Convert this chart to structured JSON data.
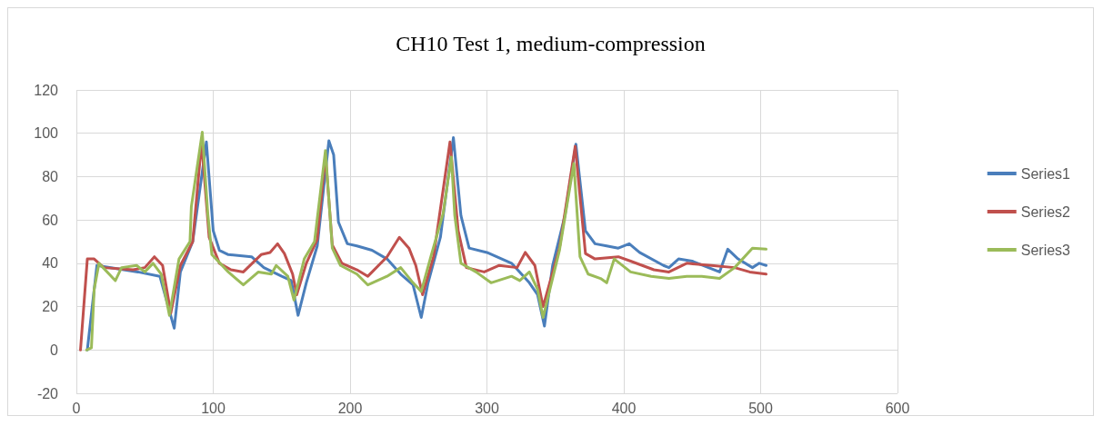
{
  "chart_data": {
    "type": "line",
    "title": "CH10 Test 1, medium-compression",
    "xlim": [
      0,
      600
    ],
    "xticks": [
      0,
      100,
      200,
      300,
      400,
      500,
      600
    ],
    "ylim": [
      -20,
      120
    ],
    "yticks": [
      -20,
      0,
      20,
      40,
      60,
      80,
      100,
      120
    ],
    "grid": true,
    "legend": "right",
    "marker": "none",
    "line_style": "solid",
    "series": [
      {
        "name": "Series1",
        "color": "#4a7ebb",
        "x": [
          8,
          15,
          45,
          61,
          71.5,
          76,
          85,
          95,
          100,
          104.5,
          111,
          128,
          137,
          150,
          157,
          162,
          168,
          176,
          184.5,
          188,
          191.5,
          198,
          205,
          216,
          227,
          237,
          246,
          252,
          257,
          266,
          275.5,
          281,
          287,
          300,
          318,
          331,
          337,
          342,
          348,
          357,
          365,
          372,
          379,
          387.5,
          396,
          404,
          411.5,
          429,
          433,
          440,
          450,
          470,
          476,
          483.5,
          494,
          499,
          504
        ],
        "values": [
          0,
          39,
          36,
          34,
          10,
          36,
          50,
          96,
          55,
          46,
          44,
          43,
          38,
          34,
          32,
          16,
          31,
          48,
          96.5,
          90,
          59,
          49,
          48,
          46,
          42,
          35,
          30,
          15,
          31,
          52,
          98,
          62,
          47,
          45,
          40,
          31,
          25.5,
          11,
          39,
          62,
          95,
          55,
          49,
          48,
          47,
          49,
          45,
          39,
          38,
          42,
          41,
          36,
          46.5,
          42,
          38,
          40,
          39
        ]
      },
      {
        "name": "Series2",
        "color": "#c0504d",
        "x": [
          3,
          8,
          13,
          20,
          41.5,
          50,
          57,
          63,
          69,
          76,
          85,
          91.5,
          97,
          104.5,
          113,
          122,
          135,
          141.5,
          147,
          152,
          158,
          161,
          168,
          176,
          182,
          187,
          194,
          205,
          213,
          227,
          236,
          243,
          248,
          253,
          261,
          273,
          279,
          285,
          298,
          309,
          322,
          328,
          335,
          341,
          353,
          364.5,
          372,
          379,
          396,
          405,
          422,
          433,
          446,
          464,
          481,
          492,
          504
        ],
        "values": [
          0,
          42,
          42,
          38,
          37,
          38,
          43,
          39,
          17,
          39,
          50,
          96,
          52,
          40,
          37,
          36,
          44,
          45,
          49,
          44.5,
          35,
          25.5,
          40,
          51,
          90,
          48.5,
          40,
          37,
          34,
          43,
          52,
          47,
          39,
          25.5,
          43,
          96,
          55,
          38,
          36,
          39,
          38,
          45,
          39,
          20,
          47,
          94,
          44.5,
          42,
          43,
          41,
          37,
          36,
          40,
          39,
          38,
          36,
          35
        ]
      },
      {
        "name": "Series3",
        "color": "#9bbb59",
        "x": [
          7.5,
          11,
          13,
          16.5,
          28.5,
          33,
          44,
          50,
          56,
          62,
          68,
          75,
          83,
          84,
          92,
          96,
          99,
          111,
          122,
          133,
          142.5,
          146,
          154.5,
          159,
          166.5,
          174,
          182,
          187,
          193,
          205,
          213,
          227,
          237,
          246,
          252,
          259,
          268,
          274,
          276.5,
          281,
          292,
          303,
          318,
          324,
          331,
          337,
          341,
          353,
          363.5,
          368,
          374,
          383,
          387.5,
          393,
          405,
          420,
          433,
          446,
          457,
          470,
          481,
          494,
          504
        ],
        "values": [
          0,
          1,
          28,
          40,
          32,
          38,
          39,
          36,
          40,
          35,
          16,
          42,
          50,
          66,
          100.5,
          63,
          44,
          36,
          30,
          36,
          35,
          39,
          34,
          23,
          42,
          50,
          92,
          47,
          39,
          35,
          30,
          34,
          38,
          31,
          27,
          43,
          63,
          89,
          62,
          40,
          36,
          31,
          34,
          32,
          36,
          28,
          15,
          46,
          86,
          43,
          35,
          33,
          31,
          42,
          36,
          34,
          33,
          34,
          34,
          33,
          38,
          47,
          46.5
        ]
      }
    ]
  }
}
